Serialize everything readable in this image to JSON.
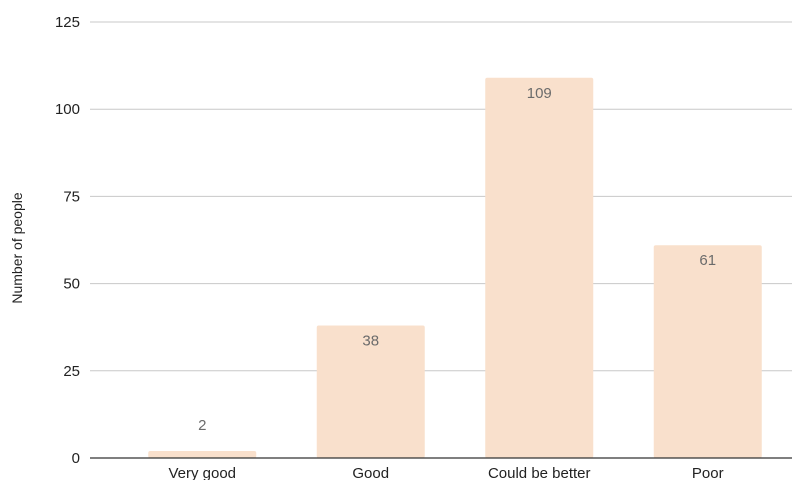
{
  "chart_data": {
    "type": "bar",
    "title": "",
    "xlabel": "",
    "ylabel": "Number of people",
    "categories": [
      "Very good",
      "Good",
      "Could be better",
      "Poor"
    ],
    "values": [
      2,
      38,
      109,
      61
    ],
    "data_labels": [
      "2",
      "38",
      "109",
      "61"
    ],
    "ylim": [
      0,
      125
    ],
    "yticks": [
      0,
      25,
      50,
      75,
      100,
      125
    ],
    "ytick_labels": [
      "0",
      "25",
      "50",
      "75",
      "100",
      "125"
    ],
    "grid": true,
    "legend": "none",
    "colors": {
      "bar": "#f9e0cc",
      "grid": "#c8c8c8",
      "axis": "#333333",
      "tick_text": "#222222",
      "data_label": "#6b6b6b"
    }
  }
}
